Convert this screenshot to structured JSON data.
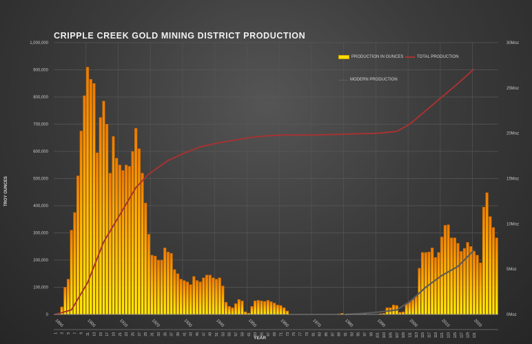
{
  "chart_data": {
    "type": "bar",
    "title": "CRIPPLE CREEK GOLD MINING DISTRICT PRODUCTION",
    "xlabel": "YEAR",
    "ylabel": "TROY OUNCES",
    "y2label": "",
    "ylim": [
      0,
      1000000
    ],
    "y2lim": [
      0,
      30
    ],
    "y_ticks": [
      "0",
      "100,000",
      "200,000",
      "300,000",
      "400,000",
      "500,000",
      "600,000",
      "700,000",
      "800,000",
      "900,000",
      "1,000,000"
    ],
    "y2_ticks": [
      "0Moz",
      "5Moz",
      "10Moz",
      "15Moz",
      "20Moz",
      "25Moz",
      "30Moz"
    ],
    "x_decade_ticks": [
      "1890",
      "1900",
      "1910",
      "1920",
      "1930",
      "1940",
      "1950",
      "1960",
      "1970",
      "1980",
      "1990",
      "2000",
      "2010",
      "2020"
    ],
    "x_index_ticks": [
      "1",
      "3",
      "5",
      "7",
      "9",
      "11",
      "13",
      "15",
      "17",
      "19",
      "21",
      "23",
      "25",
      "27",
      "29",
      "31",
      "33",
      "35",
      "37",
      "39",
      "41",
      "43",
      "45",
      "47",
      "49",
      "51",
      "53",
      "55",
      "57",
      "59",
      "61",
      "63",
      "65",
      "67",
      "69",
      "71",
      "73",
      "75",
      "77",
      "79",
      "81",
      "83",
      "85",
      "87",
      "89",
      "91",
      "93",
      "95",
      "97",
      "99",
      "101",
      "103",
      "105",
      "107",
      "109",
      "111",
      "113",
      "115",
      "117",
      "119",
      "121",
      "123",
      "125",
      "127",
      "129",
      "131"
    ],
    "grid": true,
    "legend_position": "top-right inside",
    "legend": [
      "PRODUCTION  IN OUNCES",
      "TOTAL PRODUCTION",
      "MODERN PRODUCTION"
    ],
    "x_start_year": 1890,
    "series": [
      {
        "name": "PRODUCTION  IN OUNCES",
        "type": "bar",
        "axis": "left",
        "color": "#ffd400",
        "values": [
          0,
          0,
          28000,
          100000,
          130000,
          310000,
          375000,
          510000,
          675000,
          805000,
          910000,
          865000,
          850000,
          595000,
          725000,
          785000,
          700000,
          520000,
          655000,
          575000,
          550000,
          530000,
          550000,
          545000,
          600000,
          685000,
          610000,
          520000,
          410000,
          295000,
          218000,
          215000,
          200000,
          200000,
          245000,
          230000,
          225000,
          165000,
          150000,
          130000,
          125000,
          120000,
          110000,
          140000,
          125000,
          120000,
          135000,
          145000,
          145000,
          135000,
          130000,
          135000,
          105000,
          45000,
          30000,
          25000,
          40000,
          55000,
          50000,
          10000,
          5000,
          30000,
          50000,
          52000,
          50000,
          48000,
          52000,
          47000,
          42000,
          35000,
          33000,
          25000,
          13000,
          0,
          0,
          0,
          0,
          0,
          0,
          0,
          0,
          0,
          0,
          0,
          0,
          0,
          0,
          0,
          2000,
          4000,
          0,
          0,
          0,
          0,
          0,
          0,
          5000,
          0,
          0,
          0,
          0,
          3000,
          4000,
          25000,
          25000,
          35000,
          33000,
          8000,
          10000,
          40000,
          48000,
          55000,
          68000,
          170000,
          228000,
          228000,
          230000,
          245000,
          210000,
          228000,
          285000,
          328000,
          330000,
          282000,
          282000,
          262000,
          232000,
          243000,
          265000,
          250000,
          232000,
          218000,
          190000,
          395000,
          448000,
          360000,
          320000,
          282000
        ]
      },
      {
        "name": "TOTAL PRODUCTION",
        "type": "line",
        "axis": "right",
        "unit": "Moz",
        "color": "#a83232",
        "points": [
          [
            1890,
            0
          ],
          [
            1895,
            0.5
          ],
          [
            1900,
            3.5
          ],
          [
            1905,
            8
          ],
          [
            1910,
            11
          ],
          [
            1915,
            14
          ],
          [
            1919,
            15.5
          ],
          [
            1925,
            17
          ],
          [
            1930,
            17.8
          ],
          [
            1935,
            18.5
          ],
          [
            1940,
            18.9
          ],
          [
            1945,
            19.2
          ],
          [
            1950,
            19.5
          ],
          [
            1955,
            19.7
          ],
          [
            1960,
            19.8
          ],
          [
            1965,
            19.8
          ],
          [
            1970,
            19.8
          ],
          [
            1980,
            19.9
          ],
          [
            1990,
            20.0
          ],
          [
            1996,
            20.2
          ],
          [
            2000,
            21.0
          ],
          [
            2005,
            22.5
          ],
          [
            2010,
            24.0
          ],
          [
            2015,
            25.5
          ],
          [
            2020,
            27.1
          ]
        ]
      },
      {
        "name": "MODERN PRODUCTION",
        "type": "line",
        "axis": "right",
        "unit": "Moz",
        "color": "#5a5a5a",
        "points": [
          [
            1980,
            0
          ],
          [
            1985,
            0.1
          ],
          [
            1990,
            0.25
          ],
          [
            1994,
            0.4
          ],
          [
            1996,
            0.5
          ],
          [
            2000,
            1.4
          ],
          [
            2005,
            3.0
          ],
          [
            2010,
            4.3
          ],
          [
            2015,
            5.3
          ],
          [
            2020,
            7.1
          ]
        ]
      }
    ]
  }
}
